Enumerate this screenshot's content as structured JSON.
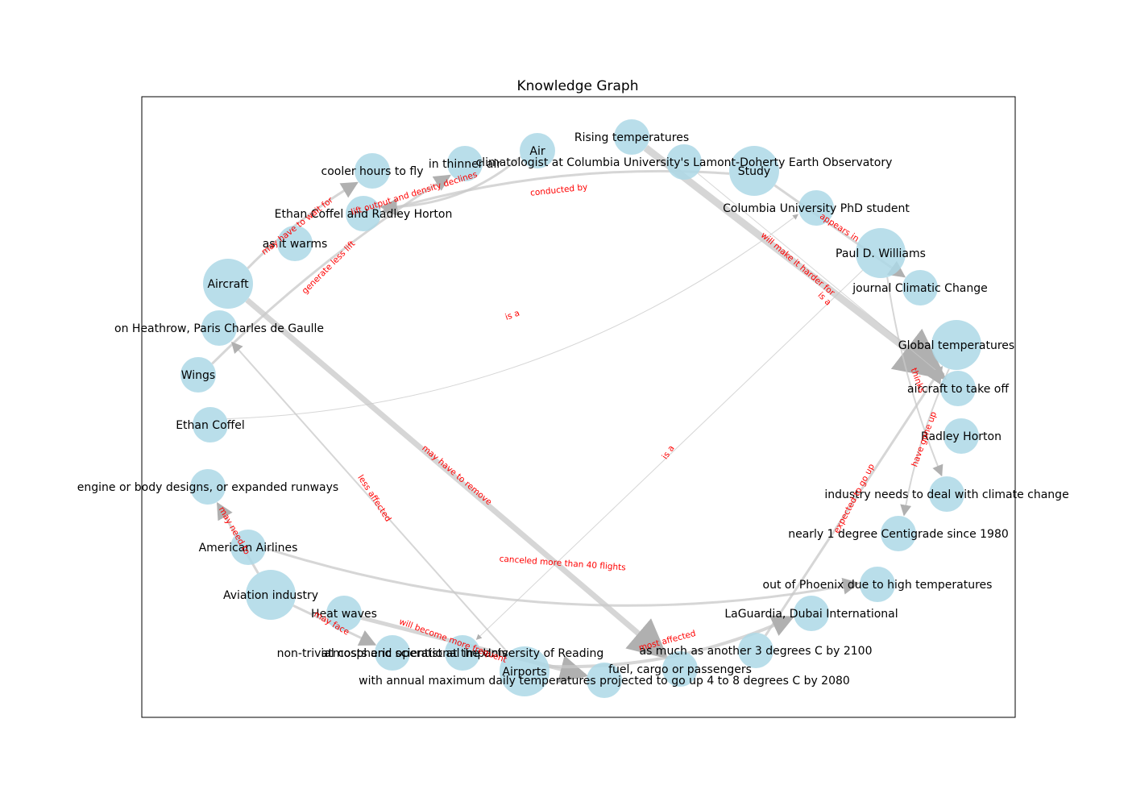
{
  "title": "Knowledge Graph",
  "colors": {
    "node": "#add8e6",
    "edge": "#c8c8c8",
    "edge_label": "#ff0000",
    "frame": "#000000"
  },
  "nodes": [
    {
      "id": "rising",
      "label": "Rising temperatures"
    },
    {
      "id": "air",
      "label": "Air"
    },
    {
      "id": "thinner",
      "label": "in thinner air"
    },
    {
      "id": "climatologist",
      "label": "climatologist at Columbia University's Lamont-Doherty Earth Observatory"
    },
    {
      "id": "study",
      "label": "Study"
    },
    {
      "id": "cooler",
      "label": "cooler hours to fly"
    },
    {
      "id": "coffelhorton",
      "label": "Ethan Coffel and Radley Horton"
    },
    {
      "id": "phd",
      "label": "Columbia University PhD student"
    },
    {
      "id": "warms",
      "label": "as it warms"
    },
    {
      "id": "paul",
      "label": "Paul D. Williams"
    },
    {
      "id": "journal",
      "label": "journal Climatic Change"
    },
    {
      "id": "aircraft",
      "label": "Aircraft"
    },
    {
      "id": "heathrow",
      "label": "on Heathrow, Paris Charles de Gaulle"
    },
    {
      "id": "globaltemp",
      "label": "Global temperatures"
    },
    {
      "id": "wings",
      "label": "Wings"
    },
    {
      "id": "takeoff",
      "label": "aircraft to take off"
    },
    {
      "id": "coffel",
      "label": "Ethan Coffel"
    },
    {
      "id": "horton",
      "label": "Radley Horton"
    },
    {
      "id": "engine",
      "label": "engine or body designs, or expanded runways"
    },
    {
      "id": "industryneeds",
      "label": "industry needs to deal with climate change"
    },
    {
      "id": "nearly",
      "label": "nearly 1 degree Centigrade since 1980"
    },
    {
      "id": "american",
      "label": "American Airlines"
    },
    {
      "id": "phoenix",
      "label": "out of Phoenix due to high temperatures"
    },
    {
      "id": "aviation",
      "label": "Aviation industry"
    },
    {
      "id": "heatwaves",
      "label": "Heat waves"
    },
    {
      "id": "laguardia",
      "label": "LaGuardia, Dubai International"
    },
    {
      "id": "another3",
      "label": "as much as another 3 degrees C by 2100"
    },
    {
      "id": "nontrivial",
      "label": "non-trivial costs and operational impacts"
    },
    {
      "id": "atmospheric",
      "label": "atmospheric scientist at the University of Reading"
    },
    {
      "id": "airports",
      "label": "Airports"
    },
    {
      "id": "fuel",
      "label": "fuel, cargo or passengers"
    },
    {
      "id": "annual",
      "label": "with annual maximum daily temperatures projected to go up 4 to 8 degrees C by 2080"
    }
  ],
  "edges": [
    {
      "from": "rising",
      "to": "takeoff",
      "label": "will make it harder for"
    },
    {
      "from": "air",
      "to": "coffelhorton",
      "label": "lift output and density declines"
    },
    {
      "from": "study",
      "to": "coffelhorton",
      "label": "conducted by"
    },
    {
      "from": "study",
      "to": "journal",
      "label": "appears in"
    },
    {
      "from": "climatologist",
      "to": "takeoff",
      "label": "is a"
    },
    {
      "from": "coffel",
      "to": "phd",
      "label": "is a"
    },
    {
      "from": "paul",
      "to": "atmospheric",
      "label": "is a"
    },
    {
      "from": "paul",
      "to": "industryneeds",
      "label": "thinks"
    },
    {
      "from": "globaltemp",
      "to": "nearly",
      "label": "have gone up"
    },
    {
      "from": "another3",
      "to": "globaltemp",
      "label": "expected to go up"
    },
    {
      "from": "aircraft",
      "to": "cooler",
      "label": "may have to wait for"
    },
    {
      "from": "wings",
      "to": "thinner",
      "label": "generate less lift"
    },
    {
      "from": "aircraft",
      "to": "fuel",
      "label": "may have to remove"
    },
    {
      "from": "airports",
      "to": "heathrow",
      "label": "less affected"
    },
    {
      "from": "aviation",
      "to": "engine",
      "label": "may need to"
    },
    {
      "from": "american",
      "to": "phoenix",
      "label": "canceled more than 40 flights"
    },
    {
      "from": "aviation",
      "to": "nontrivial",
      "label": "may face"
    },
    {
      "from": "heatwaves",
      "to": "annual",
      "label": "will become more frequent"
    },
    {
      "from": "airports",
      "to": "laguardia",
      "label": "most affected"
    }
  ]
}
